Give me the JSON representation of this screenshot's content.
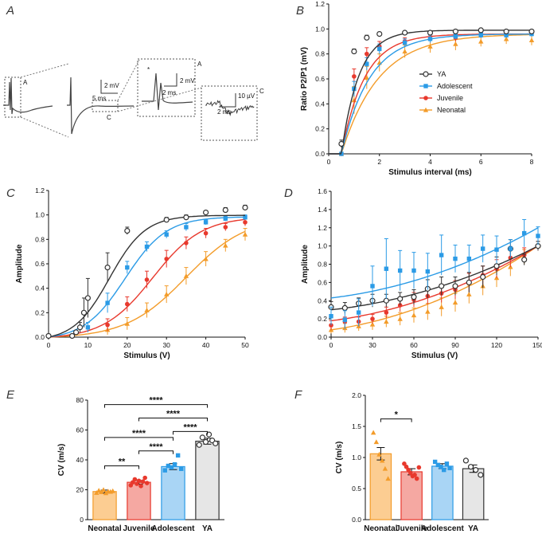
{
  "colors": {
    "YA": "#333333",
    "Adolescent": "#2b9be6",
    "Juvenile": "#e8392d",
    "Neonatal": "#f39c2a",
    "YA_fill": "#e6e6e6",
    "Adolescent_fill": "#a9d5f5",
    "Juvenile_fill": "#f5a8a2",
    "Neonatal_fill": "#fccd92"
  },
  "panelA": {
    "label": "A",
    "inset1": {
      "mark": "A",
      "star": "*",
      "scale_v": "2 mV",
      "scale_t": "2 ms"
    },
    "main": {
      "scale_v": "2 mV",
      "scale_t": "5 ms",
      "mark_a": "A",
      "mark_c": "C"
    },
    "inset2": {
      "mark": "C",
      "scale_v": "10 µV",
      "scale_t": "2 ms"
    }
  },
  "chart_data": [
    {
      "panel": "B",
      "type": "line",
      "xlabel": "Stimulus interval (ms)",
      "ylabel": "Ratio P2/P1 (mV)",
      "xlim": [
        0,
        8
      ],
      "ylim": [
        0,
        1.2
      ],
      "xticks": [
        "0",
        "2",
        "4",
        "6",
        "8"
      ],
      "yticks": [
        "0.0",
        "0.2",
        "0.4",
        "0.6",
        "0.8",
        "1.0",
        "1.2"
      ],
      "x": [
        0.5,
        1,
        1.5,
        2,
        3,
        4,
        5,
        6,
        7,
        8
      ],
      "legend": [
        "YA",
        "Adolescent",
        "Juvenile",
        "Neonatal"
      ],
      "series": [
        {
          "name": "YA",
          "values": [
            0.08,
            0.82,
            0.93,
            0.96,
            0.97,
            0.97,
            0.98,
            0.99,
            0.98,
            0.98
          ],
          "err": [
            0.03,
            0.02,
            0.02,
            0.01,
            0.01,
            0.01,
            0.01,
            0.01,
            0.01,
            0.01
          ],
          "fit_rate": 1.45
        },
        {
          "name": "Adolescent",
          "values": [
            0.0,
            0.52,
            0.72,
            0.84,
            0.89,
            0.92,
            0.94,
            0.95,
            0.95,
            0.96
          ],
          "err": [
            0.01,
            0.06,
            0.05,
            0.04,
            0.03,
            0.03,
            0.02,
            0.02,
            0.02,
            0.02
          ],
          "fit_rate": 0.9
        },
        {
          "name": "Juvenile",
          "values": [
            0.0,
            0.62,
            0.8,
            0.86,
            0.9,
            0.92,
            0.93,
            0.95,
            0.96,
            0.97
          ],
          "err": [
            0.01,
            0.06,
            0.05,
            0.04,
            0.03,
            0.03,
            0.03,
            0.02,
            0.02,
            0.02
          ],
          "fit_rate": 1.1
        },
        {
          "name": "Neonatal",
          "values": [
            0.0,
            0.43,
            0.61,
            0.73,
            0.82,
            0.86,
            0.88,
            0.9,
            0.92,
            0.91
          ],
          "err": [
            0.01,
            0.11,
            0.09,
            0.07,
            0.05,
            0.05,
            0.05,
            0.04,
            0.04,
            0.04
          ],
          "fit_rate": 0.68
        }
      ]
    },
    {
      "panel": "C",
      "type": "line",
      "xlabel": "Stimulus (V)",
      "ylabel": "Amplitude",
      "xlim": [
        0,
        50
      ],
      "ylim": [
        0,
        1.2
      ],
      "xticks": [
        "0",
        "10",
        "20",
        "30",
        "40",
        "50"
      ],
      "yticks": [
        "0.0",
        "0.2",
        "0.4",
        "0.6",
        "0.8",
        "1.0",
        "1.2"
      ],
      "series": [
        {
          "name": "YA",
          "x": [
            0,
            6,
            7,
            8,
            9,
            10,
            15,
            20,
            30,
            35,
            40,
            45,
            50
          ],
          "values": [
            0.01,
            0.01,
            0.04,
            0.08,
            0.2,
            0.32,
            0.57,
            0.87,
            0.96,
            0.98,
            1.02,
            1.04,
            1.06
          ],
          "err": [
            0.0,
            0.01,
            0.01,
            0.04,
            0.12,
            0.16,
            0.12,
            0.03,
            0.02,
            0.02,
            0.01,
            0.02,
            0.02
          ],
          "fit_mid": 15.5,
          "fit_k": 0.22,
          "fit_max": 1.03
        },
        {
          "name": "Adolescent",
          "x": [
            10,
            15,
            20,
            25,
            30,
            35,
            40,
            45,
            50
          ],
          "values": [
            0.08,
            0.28,
            0.57,
            0.74,
            0.84,
            0.9,
            0.94,
            0.97,
            0.98
          ],
          "err": [
            0.04,
            0.08,
            0.05,
            0.04,
            0.03,
            0.03,
            0.02,
            0.02,
            0.02
          ],
          "fit_mid": 19.5,
          "fit_k": 0.19,
          "fit_max": 1.01
        },
        {
          "name": "Juvenile",
          "x": [
            15,
            20,
            25,
            30,
            35,
            40,
            45,
            50
          ],
          "values": [
            0.1,
            0.27,
            0.47,
            0.64,
            0.77,
            0.85,
            0.9,
            0.94
          ],
          "err": [
            0.05,
            0.06,
            0.07,
            0.07,
            0.05,
            0.04,
            0.03,
            0.03
          ],
          "fit_mid": 26.5,
          "fit_k": 0.16,
          "fit_max": 1.0
        },
        {
          "name": "Neonatal",
          "x": [
            15,
            20,
            25,
            30,
            35,
            40,
            45,
            50
          ],
          "values": [
            0.06,
            0.11,
            0.22,
            0.35,
            0.5,
            0.64,
            0.75,
            0.84
          ],
          "err": [
            0.04,
            0.05,
            0.06,
            0.07,
            0.07,
            0.06,
            0.05,
            0.05
          ],
          "fit_mid": 35,
          "fit_k": 0.13,
          "fit_max": 1.0
        }
      ]
    },
    {
      "panel": "D",
      "type": "line",
      "xlabel": "Stimulus (V)",
      "ylabel": "Amplitude",
      "xlim": [
        0,
        150
      ],
      "ylim": [
        0,
        1.6
      ],
      "xticks": [
        "0",
        "30",
        "60",
        "90",
        "120",
        "150"
      ],
      "yticks": [
        "0.0",
        "0.2",
        "0.4",
        "0.6",
        "0.8",
        "1.0",
        "1.2",
        "1.4",
        "1.6"
      ],
      "x": [
        0,
        10,
        20,
        30,
        40,
        50,
        60,
        70,
        80,
        90,
        100,
        110,
        120,
        130,
        140,
        150
      ],
      "series": [
        {
          "name": "YA",
          "values": [
            0.33,
            0.32,
            0.37,
            0.4,
            0.4,
            0.42,
            0.44,
            0.53,
            0.56,
            0.56,
            0.6,
            0.66,
            0.78,
            0.97,
            0.85,
            1.0
          ],
          "err": [
            0.06,
            0.06,
            0.06,
            0.07,
            0.07,
            0.07,
            0.08,
            0.1,
            0.1,
            0.1,
            0.11,
            0.12,
            0.1,
            0.1,
            0.06,
            0.05
          ],
          "fit": [
            0.3,
            1.0
          ]
        },
        {
          "name": "Adolescent",
          "values": [
            0.23,
            0.19,
            0.27,
            0.56,
            0.75,
            0.73,
            0.73,
            0.72,
            0.9,
            0.86,
            0.86,
            0.97,
            0.96,
            0.97,
            1.14,
            1.11
          ],
          "err": [
            0.1,
            0.1,
            0.15,
            0.22,
            0.33,
            0.22,
            0.2,
            0.2,
            0.22,
            0.15,
            0.15,
            0.15,
            0.15,
            0.1,
            0.15,
            0.1
          ],
          "fit": [
            0.43,
            1.2
          ]
        },
        {
          "name": "Juvenile",
          "values": [
            0.13,
            0.17,
            0.17,
            0.2,
            0.27,
            0.35,
            0.41,
            0.45,
            0.48,
            0.52,
            0.6,
            0.68,
            0.75,
            0.87,
            0.9,
            1.0
          ],
          "err": [
            0.05,
            0.05,
            0.05,
            0.05,
            0.06,
            0.07,
            0.08,
            0.09,
            0.1,
            0.1,
            0.1,
            0.1,
            0.1,
            0.1,
            0.08,
            0.05
          ],
          "fit": [
            0.18,
            1.0
          ]
        },
        {
          "name": "Neonatal",
          "values": [
            0.08,
            0.1,
            0.12,
            0.14,
            0.17,
            0.2,
            0.24,
            0.28,
            0.33,
            0.38,
            0.47,
            0.56,
            0.65,
            0.77,
            0.88,
            1.0
          ],
          "err": [
            0.04,
            0.05,
            0.05,
            0.06,
            0.06,
            0.07,
            0.08,
            0.09,
            0.1,
            0.1,
            0.1,
            0.1,
            0.1,
            0.1,
            0.08,
            0.05
          ],
          "fit": [
            0.08,
            1.0
          ]
        }
      ]
    },
    {
      "panel": "E",
      "type": "bar",
      "ylabel": "CV (m/s)",
      "ylim": [
        0,
        80
      ],
      "yticks": [
        "0",
        "20",
        "40",
        "60",
        "80"
      ],
      "categories": [
        "Neonatal",
        "Juvenile",
        "Adolescent",
        "YA"
      ],
      "values": [
        18.8,
        25,
        35.5,
        52.5
      ],
      "err": [
        1,
        1.2,
        2,
        2
      ],
      "points": [
        [
          18,
          19.5,
          18.5,
          20,
          17.8,
          19,
          18.7,
          19.2
        ],
        [
          23,
          25,
          27,
          24,
          26,
          22.5,
          25.5,
          28,
          24.5
        ],
        [
          33,
          36,
          35,
          37,
          43,
          34
        ],
        [
          50,
          55,
          52,
          57,
          53,
          51
        ]
      ],
      "significance": [
        {
          "pair": [
            "Neonatal",
            "YA"
          ],
          "label": "****"
        },
        {
          "pair": [
            "Juvenile",
            "YA"
          ],
          "label": "****"
        },
        {
          "pair": [
            "Adolescent",
            "YA"
          ],
          "label": "****"
        },
        {
          "pair": [
            "Neonatal",
            "Adolescent"
          ],
          "label": "****"
        },
        {
          "pair": [
            "Juvenile",
            "Adolescent"
          ],
          "label": "****"
        },
        {
          "pair": [
            "Neonatal",
            "Juvenile"
          ],
          "label": "**"
        }
      ]
    },
    {
      "panel": "F",
      "type": "bar",
      "ylabel": "CV (m/s)",
      "ylim": [
        0,
        2.0
      ],
      "yticks": [
        "0.0",
        "0.5",
        "1.0",
        "1.5",
        "2.0"
      ],
      "categories": [
        "Neonatal",
        "Juvenile",
        "Adolescent",
        "YA"
      ],
      "values": [
        1.06,
        0.77,
        0.86,
        0.82
      ],
      "err": [
        0.1,
        0.05,
        0.04,
        0.06
      ],
      "points": [
        [
          1.4,
          1.25,
          1.05,
          0.95,
          0.82,
          0.66
        ],
        [
          0.9,
          0.85,
          0.8,
          0.75,
          0.7,
          0.72,
          0.66,
          0.84
        ],
        [
          0.93,
          0.88,
          0.85,
          0.8,
          0.9,
          0.83
        ],
        [
          0.95,
          0.85,
          0.8,
          0.72
        ]
      ],
      "significance": [
        {
          "pair": [
            "Neonatal",
            "Juvenile"
          ],
          "label": "*"
        }
      ]
    }
  ]
}
